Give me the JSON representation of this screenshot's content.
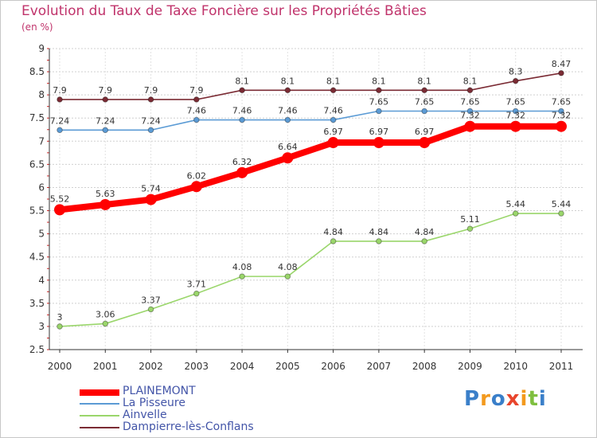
{
  "chart_data": {
    "type": "line",
    "title": "Evolution du Taux de Taxe Foncière sur les Propriétés Bâties",
    "ylabel": "(en %)",
    "xlabel": "",
    "ylim": [
      2.5,
      9
    ],
    "yticks": [
      "2.5",
      "3",
      "3.5",
      "4",
      "4.5",
      "5",
      "5.5",
      "6",
      "6.5",
      "7",
      "7.5",
      "8",
      "8.5",
      "9"
    ],
    "categories": [
      "2000",
      "2001",
      "2002",
      "2003",
      "2004",
      "2005",
      "2006",
      "2007",
      "2008",
      "2009",
      "2010",
      "2011"
    ],
    "series": [
      {
        "name": "PLAINEMONT",
        "color": "#ff0000",
        "values": [
          5.52,
          5.63,
          5.74,
          6.02,
          6.32,
          6.64,
          6.97,
          6.97,
          6.97,
          7.32,
          7.32,
          7.32
        ],
        "labels": [
          "5.52",
          "5.63",
          "5.74",
          "6.02",
          "6.32",
          "6.64",
          "6.97",
          "6.97",
          "6.97",
          "7.32",
          "7.32",
          "7.32"
        ]
      },
      {
        "name": "La Pisseure",
        "color": "#5b9bd5",
        "values": [
          7.24,
          7.24,
          7.24,
          7.46,
          7.46,
          7.46,
          7.46,
          7.65,
          7.65,
          7.65,
          7.65,
          7.65
        ],
        "labels": [
          "7.24",
          "7.24",
          "7.24",
          "7.46",
          "7.46",
          "7.46",
          "7.46",
          "7.65",
          "7.65",
          "7.65",
          "7.65",
          "7.65"
        ]
      },
      {
        "name": "Ainvelle",
        "color": "#9ad66b",
        "values": [
          3,
          3.06,
          3.37,
          3.71,
          4.08,
          4.08,
          4.84,
          4.84,
          4.84,
          5.11,
          5.44,
          5.44
        ],
        "labels": [
          "3",
          "3.06",
          "3.37",
          "3.71",
          "4.08",
          "4.08",
          "4.84",
          "4.84",
          "4.84",
          "5.11",
          "5.44",
          "5.44"
        ]
      },
      {
        "name": "Dampierre-lès-Conflans",
        "color": "#7b2b34",
        "values": [
          7.9,
          7.9,
          7.9,
          7.9,
          8.1,
          8.1,
          8.1,
          8.1,
          8.1,
          8.1,
          8.3,
          8.47
        ],
        "labels": [
          "7.9",
          "7.9",
          "7.9",
          "7.9",
          "8.1",
          "8.1",
          "8.1",
          "8.1",
          "8.1",
          "8.1",
          "8.3",
          "8.47"
        ]
      }
    ]
  },
  "logo_text": "Proxiti"
}
